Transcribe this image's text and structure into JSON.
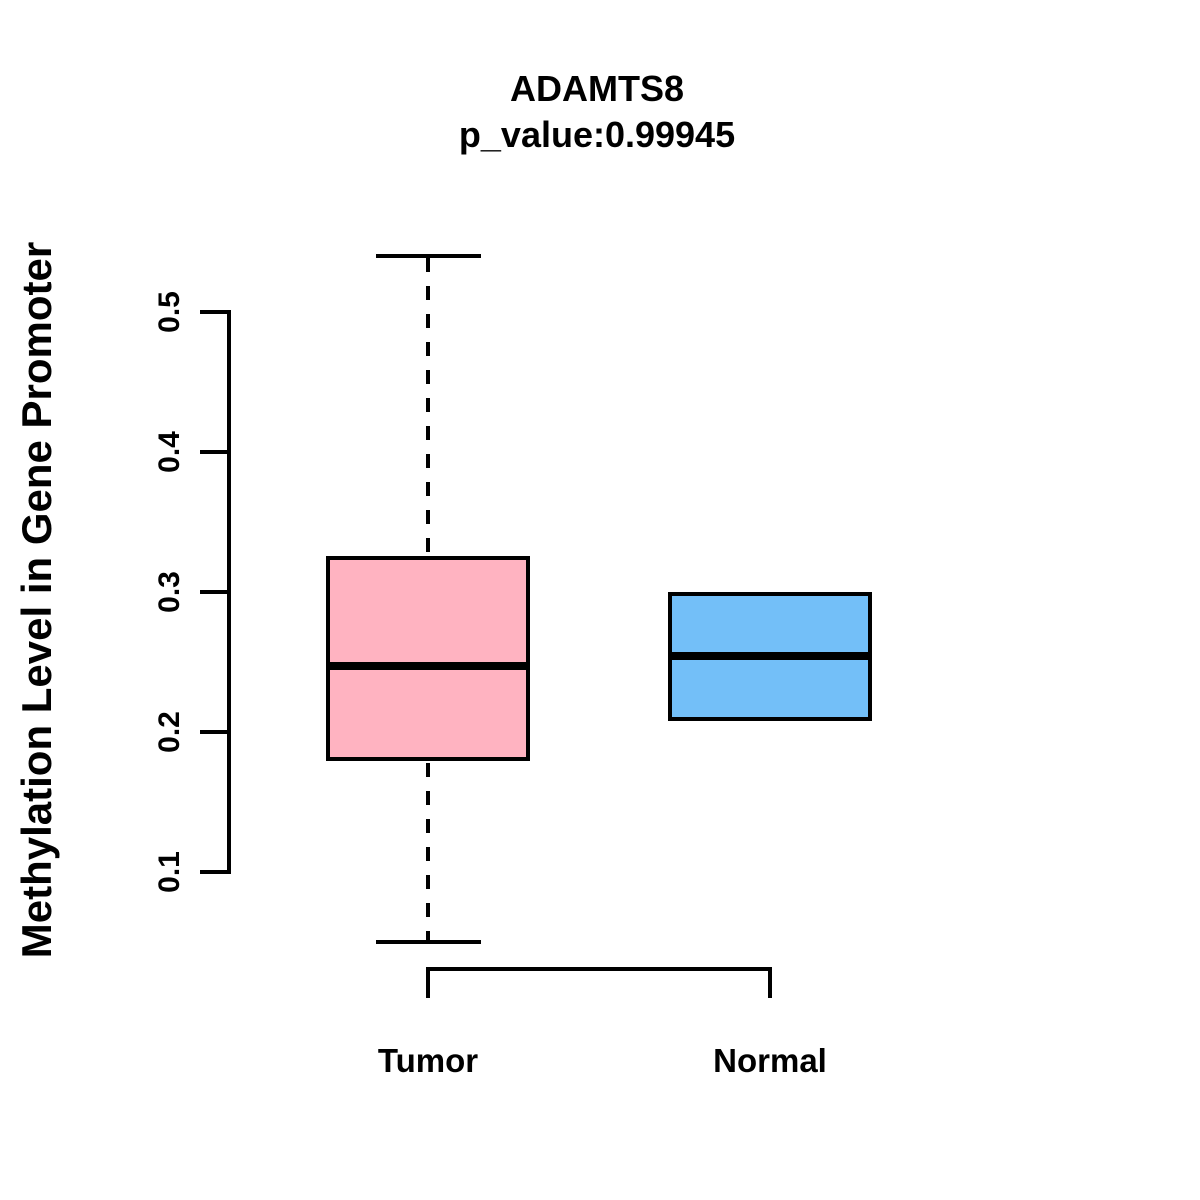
{
  "chart_data": {
    "type": "boxplot",
    "title": "ADAMTS8",
    "subtitle": "p_value:0.99945",
    "ylabel": "Methylation Level in Gene Promoter",
    "xlabel": "",
    "categories": [
      "Tumor",
      "Normal"
    ],
    "y_ticks": [
      "0.1",
      "0.2",
      "0.3",
      "0.4",
      "0.5"
    ],
    "ylim": [
      0.05,
      0.54
    ],
    "grid": false,
    "legend": "none",
    "axis_color": "#000000",
    "series": [
      {
        "name": "Tumor",
        "fill_color": "#FFB3C1",
        "border_color": "#000000",
        "whisker_low": 0.05,
        "q1": 0.179,
        "median": 0.247,
        "q3": 0.326,
        "whisker_high": 0.54
      },
      {
        "name": "Normal",
        "fill_color": "#73BFF8",
        "border_color": "#000000",
        "whisker_low": 0.208,
        "q1": 0.208,
        "median": 0.254,
        "q3": 0.3,
        "whisker_high": 0.3
      }
    ]
  }
}
